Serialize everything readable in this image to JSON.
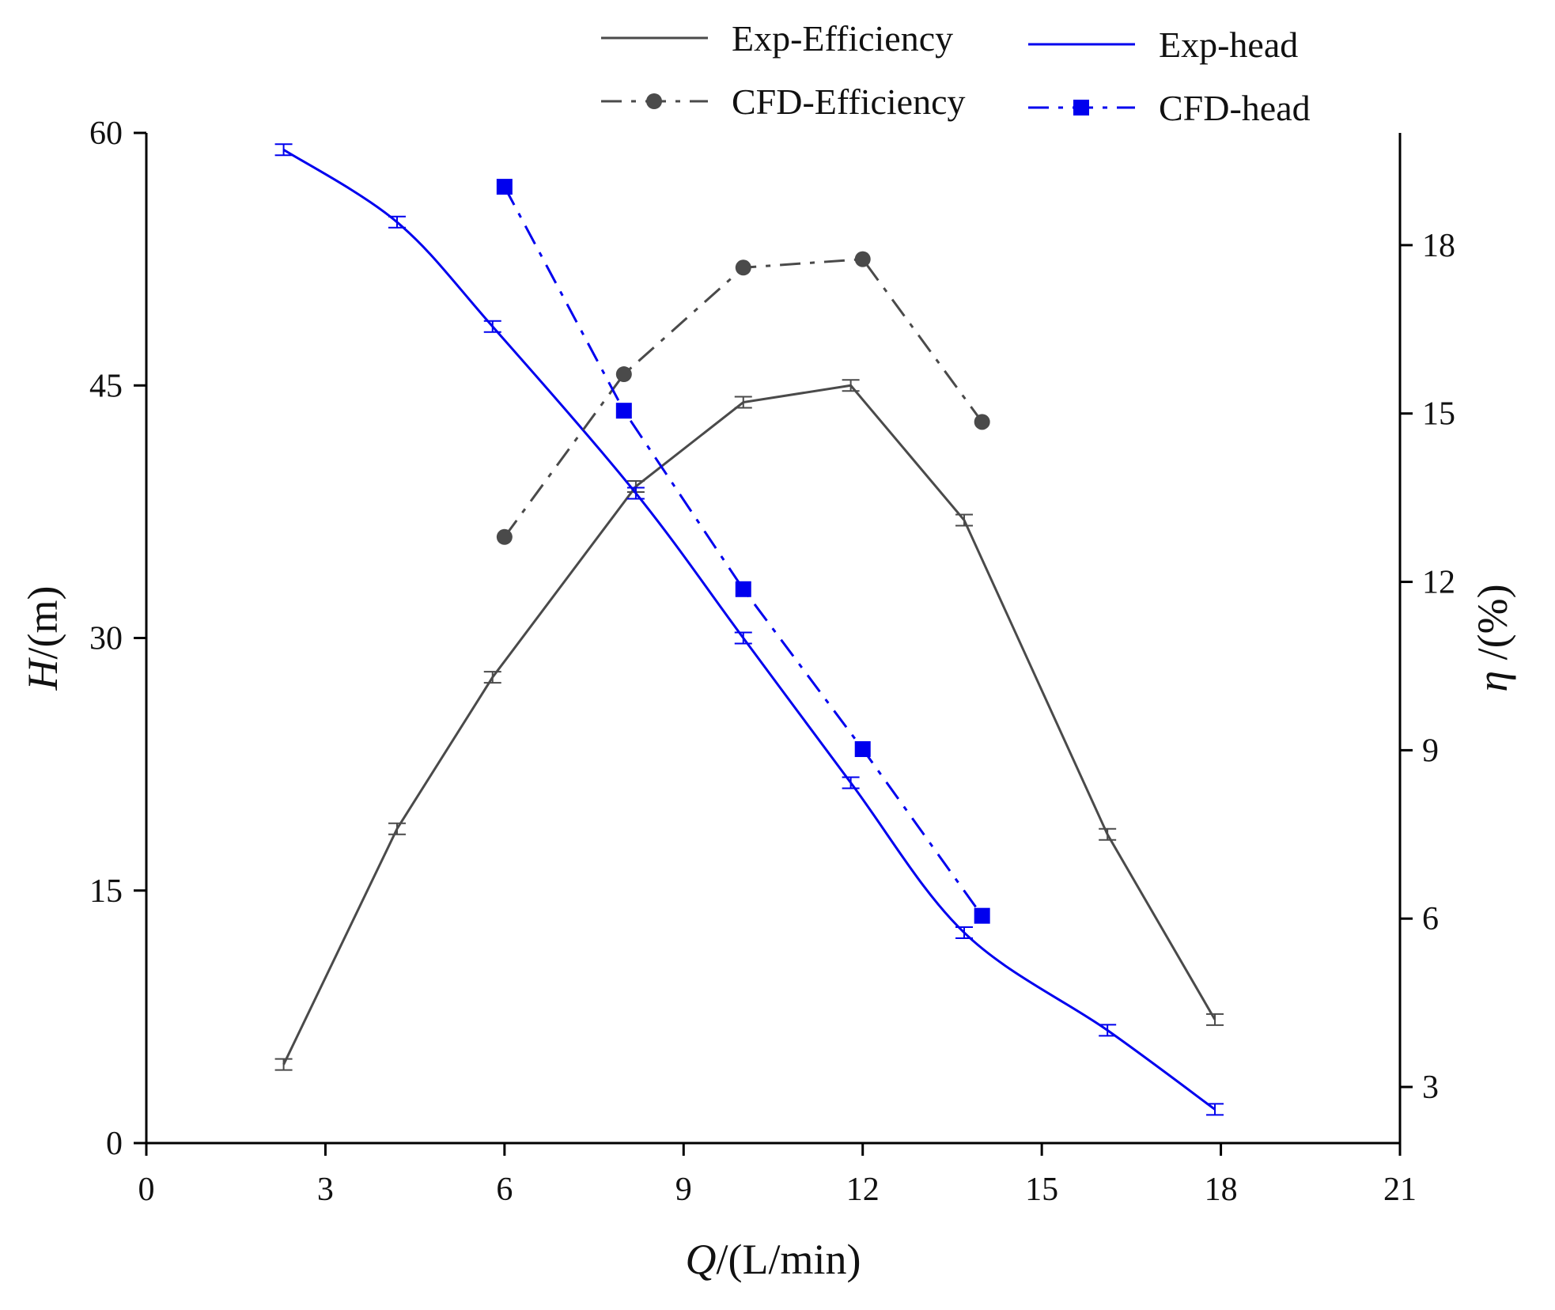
{
  "chart_data": {
    "type": "line",
    "x_axis": {
      "label_prefix": "Q",
      "label_suffix": "/(L/min)",
      "range": [
        0,
        21
      ],
      "ticks": [
        "0",
        "3",
        "6",
        "9",
        "12",
        "15",
        "18",
        "21"
      ]
    },
    "y_left": {
      "label_prefix": "H",
      "label_suffix": "/(m)",
      "range": [
        0,
        60
      ],
      "ticks": [
        "0",
        "15",
        "30",
        "45",
        "60"
      ]
    },
    "y_right": {
      "label_prefix": "η",
      "label_suffix": " /(%)",
      "range": [
        2,
        20
      ],
      "ticks": [
        "3",
        "6",
        "9",
        "12",
        "15",
        "18"
      ]
    },
    "grid": false,
    "legend_position": "top",
    "series": [
      {
        "name": "Exp-Efficiency",
        "axis": "right",
        "color": "#4a4a4a",
        "style": "solid",
        "marker": "none",
        "error_bars": true,
        "x": [
          2.3,
          4.2,
          5.8,
          8.2,
          10.0,
          11.8,
          13.7,
          16.1,
          17.9
        ],
        "y": [
          3.4,
          7.6,
          10.3,
          13.7,
          15.2,
          15.5,
          13.1,
          7.5,
          4.2
        ]
      },
      {
        "name": "Exp-head",
        "axis": "left",
        "color": "#0000ee",
        "style": "solid",
        "marker": "none",
        "error_bars": true,
        "x": [
          2.3,
          4.2,
          5.8,
          8.2,
          10.0,
          11.8,
          13.7,
          16.1,
          17.9
        ],
        "y": [
          59.0,
          54.7,
          48.5,
          38.6,
          30.0,
          21.4,
          12.5,
          6.7,
          2.0
        ]
      },
      {
        "name": "CFD-Efficiency",
        "axis": "right",
        "color": "#4a4a4a",
        "style": "dashdot",
        "marker": "circle",
        "error_bars": false,
        "x": [
          6,
          8,
          10,
          12,
          14
        ],
        "y": [
          12.8,
          15.7,
          17.6,
          17.75,
          14.85
        ]
      },
      {
        "name": "CFD-head",
        "axis": "left",
        "color": "#0000ee",
        "style": "dashdot",
        "marker": "square",
        "error_bars": false,
        "x": [
          6,
          8,
          10,
          12,
          14
        ],
        "y": [
          56.8,
          43.5,
          32.9,
          23.4,
          13.5
        ]
      }
    ]
  }
}
